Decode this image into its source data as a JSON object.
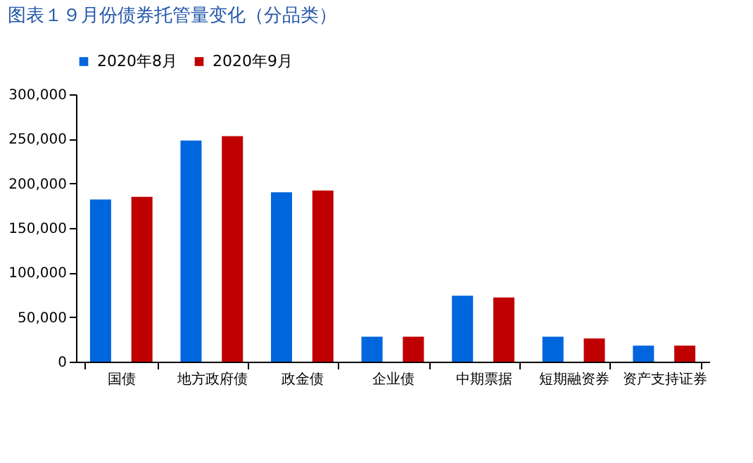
{
  "chart_data": {
    "type": "bar",
    "title": "图表１９月份债券托管量变化（分品类）",
    "categories": [
      "国债",
      "地方政府债",
      "政金债",
      "企业债",
      "中期票据",
      "短期融资券",
      "资产支持证券"
    ],
    "series": [
      {
        "name": "2020年8月",
        "color": "#0066dd",
        "values": [
          182000,
          248000,
          190000,
          28000,
          74000,
          28000,
          18000
        ]
      },
      {
        "name": "2020年9月",
        "color": "#c00000",
        "values": [
          185000,
          253000,
          192000,
          28000,
          72000,
          26000,
          18000
        ]
      }
    ],
    "ylim": [
      0,
      300000
    ],
    "yticks": [
      0,
      {
        "value": 50000,
        "label": "50,000"
      },
      {
        "value": 100000,
        "label": "100,000"
      },
      {
        "value": 150000,
        "label": "150,000"
      },
      {
        "value": 200000,
        "label": "200,000"
      },
      {
        "value": 250000,
        "label": "250,000"
      },
      {
        "value": 300000,
        "label": "300,000"
      }
    ],
    "grid": false,
    "legend": "top"
  }
}
